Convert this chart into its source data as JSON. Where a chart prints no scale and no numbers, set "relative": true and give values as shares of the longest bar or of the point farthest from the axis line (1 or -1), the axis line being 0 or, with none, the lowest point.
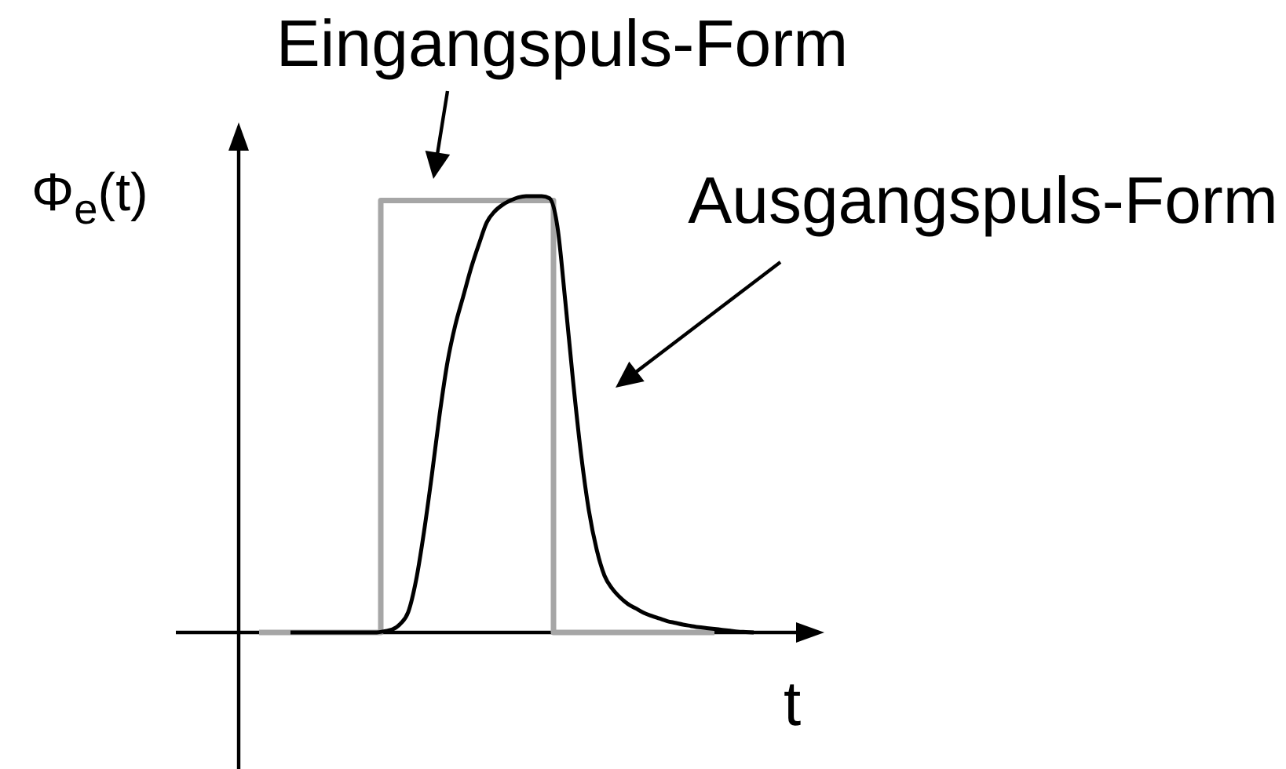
{
  "chart_data": {
    "type": "line",
    "relative": true,
    "xlabel": "t",
    "ylabel": "Φ$_{e}$(t)",
    "categories": [
      null,
      null,
      null,
      null,
      null,
      null,
      null,
      null,
      null,
      null,
      null,
      null,
      null,
      null,
      null,
      null,
      null,
      null,
      null,
      null,
      null,
      null,
      null,
      null,
      null,
      null,
      null,
      null,
      null,
      null,
      null,
      null,
      null,
      null,
      null,
      null,
      null,
      null,
      null,
      null,
      null,
      null,
      null,
      null,
      null,
      null,
      null,
      null,
      null,
      null,
      null,
      null,
      null,
      null,
      null,
      null,
      null,
      null,
      null,
      null,
      null,
      null,
      null,
      null
    ],
    "series": [
      {
        "name": "Eingangspuls-Form",
        "type": "step",
        "color": "#a6a6a6",
        "values": [
          0,
          0,
          0,
          0,
          0,
          0,
          0,
          0,
          0,
          0,
          0,
          0,
          0,
          0,
          0,
          0,
          0.99,
          0.99,
          0.99,
          0.99,
          0.99,
          0.99,
          0.99,
          0.99,
          0.99,
          0.99,
          0.99,
          0.99,
          0.99,
          0.99,
          0.99,
          0.99,
          0.99,
          0.99,
          0.99,
          0.99,
          0.99,
          0.99,
          0,
          0,
          0,
          0,
          0,
          0,
          0,
          0,
          0,
          0,
          0,
          0,
          0,
          0,
          0,
          0,
          0,
          0,
          0,
          0,
          0,
          null,
          null,
          null,
          null,
          null
        ]
      },
      {
        "name": "Ausgangspuls-Form",
        "type": "line",
        "color": "#000000",
        "values": [
          null,
          null,
          null,
          null,
          0,
          0,
          0,
          0,
          0,
          0,
          0,
          0,
          0,
          0,
          0,
          0,
          0.003,
          0.007,
          0.02,
          0.047,
          0.12,
          0.23,
          0.36,
          0.5,
          0.62,
          0.705,
          0.77,
          0.835,
          0.89,
          0.94,
          0.965,
          0.98,
          0.99,
          0.997,
          1,
          1,
          1,
          0.995,
          0.93,
          0.76,
          0.575,
          0.41,
          0.28,
          0.19,
          0.13,
          0.1,
          0.08,
          0.065,
          0.055,
          0.045,
          0.038,
          0.032,
          0.026,
          0.022,
          0.018,
          0.015,
          0.012,
          0.01,
          0.008,
          0.006,
          0.004,
          0.002,
          0.001,
          0
        ]
      }
    ]
  }
}
